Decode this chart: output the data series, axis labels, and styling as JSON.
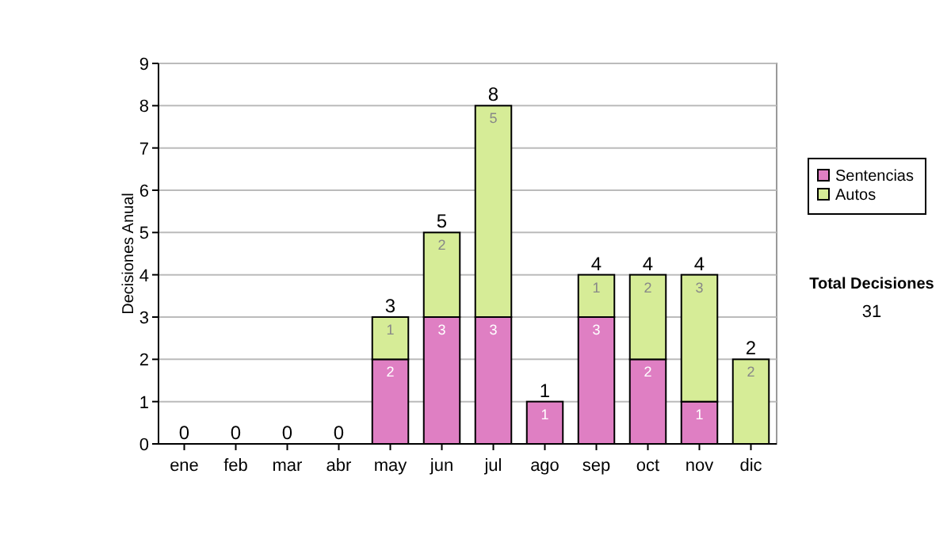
{
  "chart_data": {
    "type": "bar",
    "stacked": true,
    "ylabel": "Decisiones Anual",
    "categories": [
      "ene",
      "feb",
      "mar",
      "abr",
      "may",
      "jun",
      "jul",
      "ago",
      "sep",
      "oct",
      "nov",
      "dic"
    ],
    "series": [
      {
        "name": "Sentencias",
        "color": "#df7fc3",
        "values": [
          0,
          0,
          0,
          0,
          2,
          3,
          3,
          1,
          3,
          2,
          1,
          0
        ],
        "value_labels": [
          null,
          null,
          null,
          null,
          "2",
          "3",
          "3",
          "1",
          "3",
          "2",
          "1",
          null
        ]
      },
      {
        "name": "Autos",
        "color": "#d6ec97",
        "values": [
          0,
          0,
          0,
          0,
          1,
          2,
          5,
          0,
          1,
          2,
          3,
          2
        ],
        "value_labels": [
          null,
          null,
          null,
          null,
          "1",
          "2",
          "5",
          null,
          "1",
          "2",
          "3",
          "2"
        ]
      }
    ],
    "totals": [
      "0",
      "0",
      "0",
      "0",
      "3",
      "5",
      "8",
      "1",
      "4",
      "4",
      "4",
      "2"
    ],
    "ylim": [
      0,
      9
    ],
    "yticks": [
      0,
      1,
      2,
      3,
      4,
      5,
      6,
      7,
      8,
      9
    ],
    "grid": "y",
    "legend": "right",
    "annotations": [
      "Total Decisiones",
      "31"
    ]
  }
}
